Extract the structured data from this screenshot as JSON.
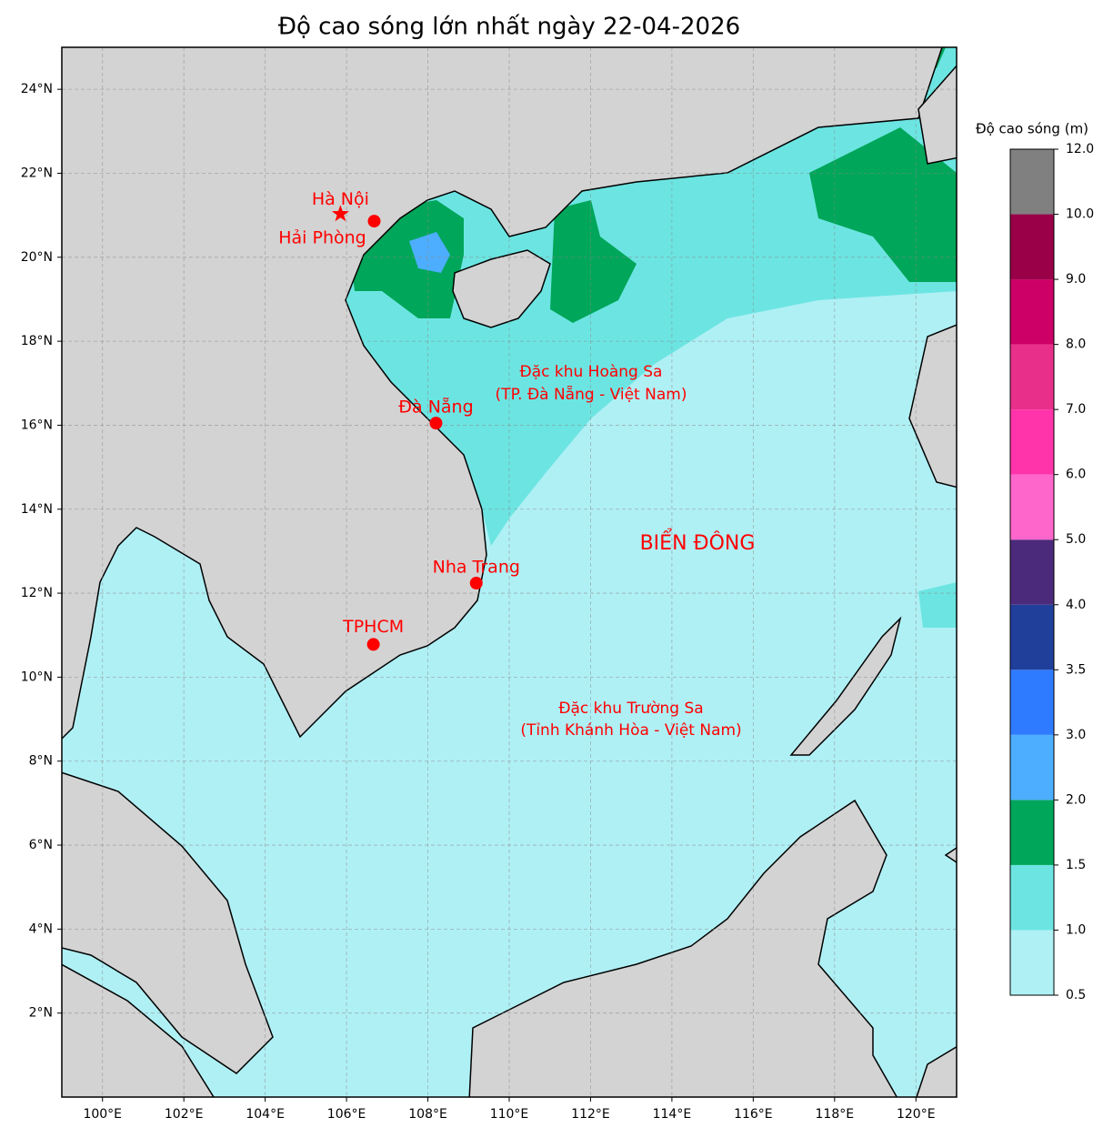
{
  "chart_data": {
    "type": "map",
    "title": "Độ cao sóng lớn nhất ngày 22-04-2026",
    "xlim": [
      99,
      121
    ],
    "ylim": [
      0,
      25
    ],
    "xticks": [
      {
        "value": 100,
        "label": "100°E"
      },
      {
        "value": 102,
        "label": "102°E"
      },
      {
        "value": 104,
        "label": "104°E"
      },
      {
        "value": 106,
        "label": "106°E"
      },
      {
        "value": 108,
        "label": "108°E"
      },
      {
        "value": 110,
        "label": "110°E"
      },
      {
        "value": 112,
        "label": "112°E"
      },
      {
        "value": 114,
        "label": "114°E"
      },
      {
        "value": 116,
        "label": "116°E"
      },
      {
        "value": 118,
        "label": "118°E"
      },
      {
        "value": 120,
        "label": "120°E"
      }
    ],
    "yticks": [
      {
        "value": 2,
        "label": "2°N"
      },
      {
        "value": 4,
        "label": "4°N"
      },
      {
        "value": 6,
        "label": "6°N"
      },
      {
        "value": 8,
        "label": "8°N"
      },
      {
        "value": 10,
        "label": "10°N"
      },
      {
        "value": 12,
        "label": "12°N"
      },
      {
        "value": 14,
        "label": "14°N"
      },
      {
        "value": 16,
        "label": "16°N"
      },
      {
        "value": 18,
        "label": "18°N"
      },
      {
        "value": 20,
        "label": "20°N"
      },
      {
        "value": 22,
        "label": "22°N"
      },
      {
        "value": 24,
        "label": "24°N"
      }
    ],
    "grid": true,
    "places": [
      {
        "name": "Hà Nội",
        "lon": 105.85,
        "lat": 21.03,
        "marker": "star",
        "color": "#ff0000"
      },
      {
        "name": "Hải Phòng",
        "lon": 106.68,
        "lat": 20.86,
        "marker": "circle",
        "color": "#ff0000"
      },
      {
        "name": "Đà Nẵng",
        "lon": 108.2,
        "lat": 16.05,
        "marker": "circle",
        "color": "#ff0000"
      },
      {
        "name": "Nha Trang",
        "lon": 109.19,
        "lat": 12.24,
        "marker": "circle",
        "color": "#ff0000"
      },
      {
        "name": "TPHCM",
        "lon": 106.66,
        "lat": 10.78,
        "marker": "circle",
        "color": "#ff0000"
      }
    ],
    "annotations": {
      "hoang_sa": [
        "Đặc khu Hoàng Sa",
        "(TP. Đà Nẵng - Việt Nam)"
      ],
      "bien_dong": "BIỂN ĐÔNG",
      "truong_sa": [
        "Đặc khu Trường Sa",
        "(Tỉnh Khánh Hòa - Việt Nam)"
      ]
    },
    "colorbar": {
      "label": "Độ cao sóng (m)",
      "ticks": [
        0.5,
        {
          "value": 1,
          "label": "1.0"
        },
        1.5,
        {
          "value": 2,
          "label": "2.0"
        },
        {
          "value": 3,
          "label": "3.0"
        },
        3.5,
        {
          "value": 4,
          "label": "4.0"
        },
        {
          "value": 5,
          "label": "5.0"
        },
        {
          "value": 6,
          "label": "6.0"
        },
        {
          "value": 7,
          "label": "7.0"
        },
        {
          "value": 8,
          "label": "8.0"
        },
        {
          "value": 9,
          "label": "9.0"
        },
        {
          "value": 10,
          "label": "10.0"
        },
        {
          "value": 12,
          "label": "12.0"
        }
      ],
      "colors": [
        "#aff0f5",
        "#6ce5e2",
        "#00a65a",
        "#4daeff",
        "#2e7bff",
        "#1f3f9a",
        "#4b2a7b",
        "#ff66cc",
        "#ff33aa",
        "#e8308a",
        "#cc0066",
        "#990047",
        "#808080"
      ]
    }
  }
}
